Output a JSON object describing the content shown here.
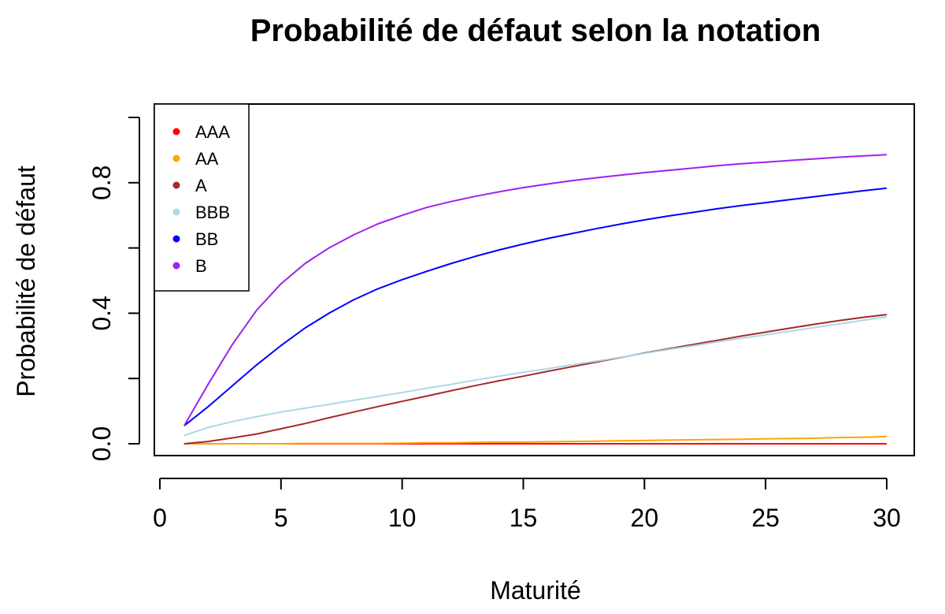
{
  "chart_data": {
    "type": "line",
    "title": "Probabilité de défaut selon la notation",
    "xlabel": "Maturité",
    "ylabel": "Probabilité de défaut",
    "xlim": [
      1,
      30
    ],
    "ylim": [
      0,
      1
    ],
    "x_ticks": [
      "0",
      "5",
      "10",
      "15",
      "20",
      "25",
      "30"
    ],
    "y_ticks": [
      "0.0",
      "0.4",
      "0.8"
    ],
    "legend_position": "top-left",
    "x": [
      1,
      2,
      3,
      4,
      5,
      6,
      7,
      8,
      9,
      10,
      11,
      12,
      13,
      14,
      15,
      16,
      17,
      18,
      19,
      20,
      21,
      22,
      23,
      24,
      25,
      26,
      27,
      28,
      29,
      30
    ],
    "series": [
      {
        "name": "AAA",
        "color": "#ff0000",
        "values": [
          0,
          0,
          0,
          0,
          0,
          0,
          0,
          0,
          0,
          0,
          0,
          0,
          0,
          0,
          0,
          0,
          0,
          0,
          0,
          0,
          0,
          0,
          0,
          0,
          0,
          0,
          0,
          0,
          0,
          0
        ]
      },
      {
        "name": "AA",
        "color": "#ffa500",
        "values": [
          0.0,
          0.0,
          0.0,
          0.0,
          0.0,
          0.001,
          0.001,
          0.001,
          0.001,
          0.002,
          0.003,
          0.003,
          0.004,
          0.005,
          0.005,
          0.006,
          0.007,
          0.008,
          0.009,
          0.01,
          0.011,
          0.012,
          0.013,
          0.014,
          0.015,
          0.016,
          0.017,
          0.019,
          0.02,
          0.022
        ]
      },
      {
        "name": "A",
        "color": "#a52a2a",
        "values": [
          0.0,
          0.007,
          0.018,
          0.03,
          0.046,
          0.062,
          0.08,
          0.097,
          0.114,
          0.13,
          0.146,
          0.162,
          0.178,
          0.193,
          0.207,
          0.222,
          0.236,
          0.25,
          0.264,
          0.278,
          0.291,
          0.304,
          0.317,
          0.33,
          0.342,
          0.354,
          0.366,
          0.377,
          0.387,
          0.396
        ]
      },
      {
        "name": "BBB",
        "color": "#add8e6",
        "values": [
          0.025,
          0.05,
          0.068,
          0.083,
          0.097,
          0.109,
          0.121,
          0.133,
          0.145,
          0.157,
          0.17,
          0.182,
          0.195,
          0.207,
          0.219,
          0.23,
          0.242,
          0.253,
          0.265,
          0.277,
          0.289,
          0.3,
          0.312,
          0.323,
          0.334,
          0.345,
          0.356,
          0.367,
          0.378,
          0.389
        ]
      },
      {
        "name": "BB",
        "color": "#0000ff",
        "values": [
          0.055,
          0.114,
          0.178,
          0.242,
          0.301,
          0.355,
          0.401,
          0.441,
          0.475,
          0.503,
          0.528,
          0.552,
          0.574,
          0.594,
          0.612,
          0.629,
          0.644,
          0.659,
          0.673,
          0.686,
          0.698,
          0.709,
          0.72,
          0.73,
          0.739,
          0.748,
          0.757,
          0.766,
          0.775,
          0.783
        ]
      },
      {
        "name": "B",
        "color": "#a020f0",
        "values": [
          0.055,
          0.183,
          0.305,
          0.41,
          0.49,
          0.553,
          0.601,
          0.64,
          0.674,
          0.7,
          0.724,
          0.742,
          0.758,
          0.772,
          0.785,
          0.796,
          0.806,
          0.815,
          0.823,
          0.831,
          0.838,
          0.845,
          0.852,
          0.858,
          0.863,
          0.868,
          0.873,
          0.878,
          0.882,
          0.886
        ]
      }
    ]
  }
}
